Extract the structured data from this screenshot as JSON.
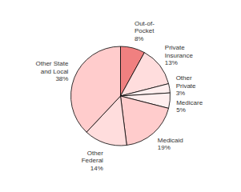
{
  "chart_data": {
    "type": "pie",
    "categories": [
      "Out-of-\nPocket",
      "Private\nInsurance",
      "Other\nPrivate",
      "Medicare",
      "Medicaid",
      "Other\nFederal",
      "Other State\nand Local"
    ],
    "values": [
      8,
      13,
      3,
      5,
      19,
      14,
      38
    ],
    "value_labels": [
      "8%",
      "13%",
      "3%",
      "5%",
      "19%",
      "14%",
      "38%"
    ],
    "data_labels": true,
    "colors": [
      "#f08080",
      "#ffdddd",
      "#ffeeee",
      "#ffeeee",
      "#ffcccc",
      "#ffdddd",
      "#ffcccc"
    ]
  }
}
